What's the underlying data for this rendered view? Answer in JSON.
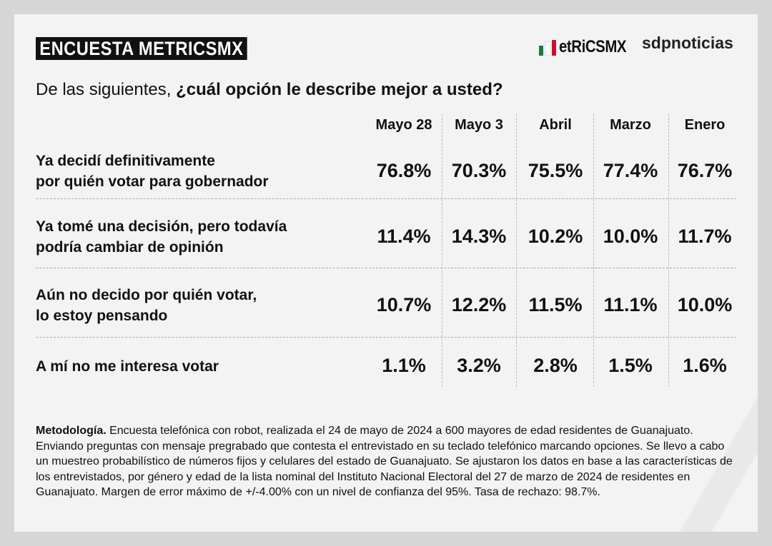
{
  "header": {
    "title": "ENCUESTA METRICSMX",
    "logo_text": "etRiCSMX",
    "publisher": "sdpnoticias"
  },
  "question": {
    "prefix": "De las siguientes, ",
    "bold": "¿cuál opción le describe mejor a usted?"
  },
  "columns": [
    "Mayo 28",
    "Mayo 3",
    "Abril",
    "Marzo",
    "Enero"
  ],
  "rows": [
    {
      "label_lines": [
        "Ya decidí definitivamente",
        "por quién votar para gobernador"
      ],
      "values": [
        "76.8%",
        "70.3%",
        "75.5%",
        "77.4%",
        "76.7%"
      ]
    },
    {
      "label_lines": [
        "Ya tomé una decisión, pero todavía",
        "podría cambiar de opinión"
      ],
      "values": [
        "11.4%",
        "14.3%",
        "10.2%",
        "10.0%",
        "11.7%"
      ]
    },
    {
      "label_lines": [
        "Aún no decido por quién votar,",
        "lo estoy pensando"
      ],
      "values": [
        "10.7%",
        "12.2%",
        "11.5%",
        "11.1%",
        "10.0%"
      ]
    },
    {
      "label_lines": [
        "A mí no me interesa votar"
      ],
      "values": [
        "1.1%",
        "3.2%",
        "2.8%",
        "1.5%",
        "1.6%"
      ]
    }
  ],
  "methodology": {
    "bold": "Metodología.",
    "text": " Encuesta telefónica con robot, realizada el 24 de mayo de 2024 a 600 mayores de edad residentes de Guanajuato. Enviando preguntas con mensaje pregrabado que contesta el entrevistado en su teclado telefónico marcando opciones. Se llevo a cabo un muestreo probabilístico de números fijos y celulares del estado de Guanajuato. Se ajustaron los datos en base a las características de los entrevistados, por género y edad de la lista nominal del Instituto Nacional Electoral del 27 de marzo de 2024 de residentes en Guanajuato. Margen de error máximo de +/-4.00% con un nivel de confianza del 95%. Tasa de rechazo: 98.7%."
  },
  "colors": {
    "green": "#1a7a3a",
    "red": "#c8102e",
    "dark": "#111111"
  }
}
